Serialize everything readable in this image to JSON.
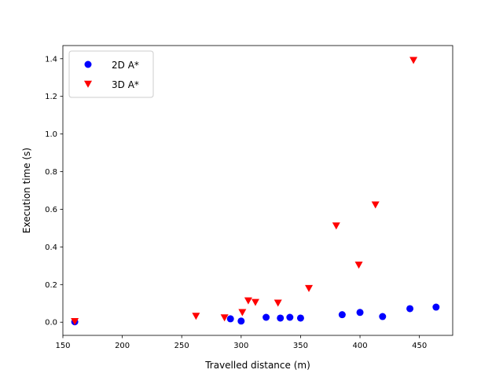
{
  "chart_data": {
    "type": "scatter",
    "xlabel": "Travelled distance (m)",
    "ylabel": "Execution time (s)",
    "xlim": [
      150,
      478
    ],
    "ylim": [
      -0.07,
      1.47
    ],
    "xticks": [
      150,
      200,
      250,
      300,
      350,
      400,
      450
    ],
    "yticks": [
      0.0,
      0.2,
      0.4,
      0.6,
      0.8,
      1.0,
      1.2,
      1.4
    ],
    "xtick_labels": [
      "150",
      "200",
      "250",
      "300",
      "350",
      "400",
      "450"
    ],
    "ytick_labels": [
      "0.0",
      "0.2",
      "0.4",
      "0.6",
      "0.8",
      "1.0",
      "1.2",
      "1.4"
    ],
    "grid": false,
    "legend_position": "top-left",
    "series": [
      {
        "name": "2D A*",
        "marker": "circle",
        "color": "#0000ff",
        "points": [
          {
            "x": 160,
            "y": 0.002
          },
          {
            "x": 291,
            "y": 0.018
          },
          {
            "x": 300,
            "y": 0.006
          },
          {
            "x": 321,
            "y": 0.026
          },
          {
            "x": 333,
            "y": 0.022
          },
          {
            "x": 341,
            "y": 0.026
          },
          {
            "x": 350,
            "y": 0.022
          },
          {
            "x": 385,
            "y": 0.04
          },
          {
            "x": 400,
            "y": 0.052
          },
          {
            "x": 419,
            "y": 0.03
          },
          {
            "x": 442,
            "y": 0.072
          },
          {
            "x": 464,
            "y": 0.08
          }
        ]
      },
      {
        "name": "3D A*",
        "marker": "triangle-down",
        "color": "#ff0000",
        "points": [
          {
            "x": 160,
            "y": 0.004
          },
          {
            "x": 262,
            "y": 0.032
          },
          {
            "x": 286,
            "y": 0.024
          },
          {
            "x": 301,
            "y": 0.052
          },
          {
            "x": 306,
            "y": 0.114
          },
          {
            "x": 312,
            "y": 0.106
          },
          {
            "x": 331,
            "y": 0.102
          },
          {
            "x": 357,
            "y": 0.18
          },
          {
            "x": 380,
            "y": 0.512
          },
          {
            "x": 399,
            "y": 0.304
          },
          {
            "x": 413,
            "y": 0.624
          },
          {
            "x": 445,
            "y": 1.392
          }
        ]
      }
    ]
  }
}
